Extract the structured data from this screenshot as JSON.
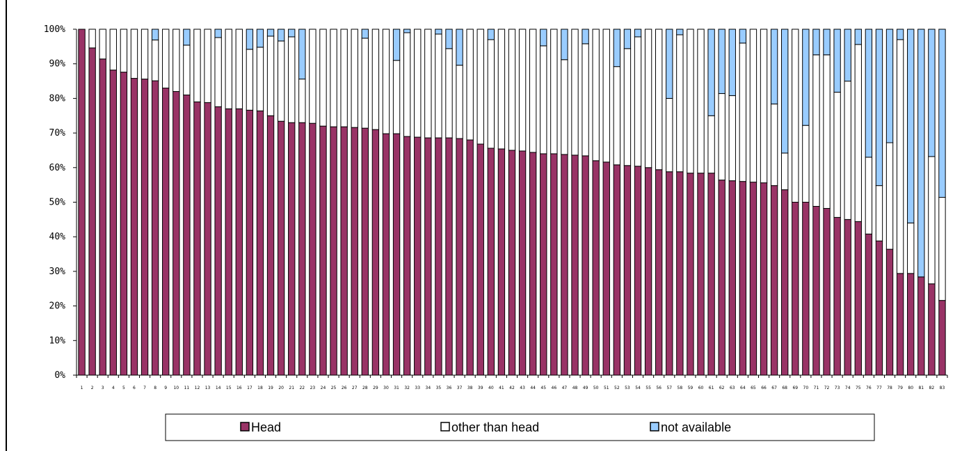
{
  "chart_data": {
    "type": "bar",
    "stacked": true,
    "normalized_percent": true,
    "categories": [
      "1",
      "2",
      "3",
      "4",
      "5",
      "6",
      "7",
      "8",
      "9",
      "10",
      "11",
      "12",
      "13",
      "14",
      "15",
      "16",
      "17",
      "18",
      "19",
      "20",
      "21",
      "22",
      "23",
      "24",
      "25",
      "26",
      "27",
      "28",
      "29",
      "30",
      "31",
      "32",
      "33",
      "34",
      "35",
      "36",
      "37",
      "38",
      "39",
      "40",
      "41",
      "42",
      "43",
      "44",
      "45",
      "46",
      "47",
      "48",
      "49",
      "50",
      "51",
      "52",
      "53",
      "54",
      "55",
      "56",
      "57",
      "58",
      "59",
      "60",
      "61",
      "62",
      "63",
      "64",
      "65",
      "66",
      "67",
      "68",
      "69",
      "70",
      "71",
      "72",
      "73",
      "74",
      "75",
      "76",
      "77",
      "78",
      "79",
      "80",
      "81",
      "82",
      "83"
    ],
    "series": [
      {
        "name": "Head",
        "color": "#993366",
        "values": [
          100,
          94.6,
          91.4,
          88.2,
          87.6,
          85.8,
          85.6,
          85.1,
          83.0,
          82.0,
          81.0,
          79.0,
          78.8,
          77.6,
          77.0,
          77.0,
          76.6,
          76.4,
          75.0,
          73.4,
          73.0,
          73.0,
          72.8,
          72.0,
          71.8,
          71.8,
          71.6,
          71.4,
          71.0,
          69.8,
          69.8,
          69.0,
          68.8,
          68.6,
          68.6,
          68.6,
          68.4,
          68.0,
          66.8,
          65.6,
          65.4,
          65.0,
          64.8,
          64.4,
          64.0,
          64.0,
          63.8,
          63.6,
          63.4,
          62.0,
          61.6,
          60.8,
          60.6,
          60.4,
          60.0,
          59.4,
          58.8,
          58.8,
          58.4,
          58.4,
          58.4,
          56.4,
          56.2,
          56.0,
          55.8,
          55.6,
          54.8,
          53.6,
          50.0,
          50.0,
          48.8,
          48.2,
          45.6,
          45.0,
          44.4,
          40.8,
          38.8,
          36.4,
          29.4,
          29.4,
          28.4,
          26.4,
          21.6
        ]
      },
      {
        "name": "other than head",
        "color": "#FFFFFF",
        "values": [
          0,
          5.4,
          8.6,
          11.8,
          12.4,
          14.2,
          14.4,
          11.8,
          17.0,
          18.0,
          14.4,
          21.0,
          21.2,
          20.0,
          23.0,
          23.0,
          17.6,
          18.4,
          23.0,
          23.2,
          24.8,
          12.6,
          27.2,
          28.0,
          28.2,
          28.2,
          28.4,
          26.0,
          29.0,
          30.2,
          21.2,
          30.0,
          31.2,
          31.4,
          30.0,
          25.8,
          21.2,
          32.0,
          33.2,
          31.4,
          34.6,
          35.0,
          35.2,
          35.6,
          31.2,
          36.0,
          27.4,
          36.4,
          32.4,
          38.0,
          38.4,
          28.4,
          33.8,
          37.4,
          40.0,
          40.6,
          21.2,
          39.6,
          41.6,
          41.6,
          16.6,
          25.0,
          24.6,
          40.0,
          44.2,
          44.4,
          23.6,
          10.6,
          50.0,
          22.2,
          43.8,
          44.4,
          36.2,
          40.0,
          51.2,
          22.2,
          16.0,
          30.8,
          67.6,
          14.6,
          0,
          36.8,
          29.8
        ]
      },
      {
        "name": "not available",
        "color": "#99CCFF",
        "values": [
          0,
          0,
          0,
          0,
          0,
          0,
          0,
          3.1,
          0,
          0,
          4.6,
          0,
          0,
          2.4,
          0,
          0,
          5.8,
          5.2,
          2.0,
          3.4,
          2.2,
          14.4,
          0,
          0,
          0,
          0,
          0,
          2.6,
          0,
          0,
          9.0,
          1.0,
          0,
          0,
          1.4,
          5.6,
          10.4,
          0,
          0,
          3.0,
          0,
          0,
          0,
          0,
          4.8,
          0,
          8.8,
          0,
          4.2,
          0,
          0,
          10.8,
          5.6,
          2.2,
          0,
          0,
          20.0,
          1.6,
          0,
          0,
          25.0,
          18.6,
          19.2,
          4.0,
          0,
          0,
          21.6,
          35.8,
          0,
          27.8,
          7.4,
          7.4,
          18.2,
          15.0,
          4.4,
          37.0,
          45.2,
          32.8,
          3.0,
          56.0,
          71.6,
          36.8,
          48.6
        ]
      }
    ],
    "y_tick_labels": [
      "0%",
      "10%",
      "20%",
      "30%",
      "40%",
      "50%",
      "60%",
      "70%",
      "80%",
      "90%",
      "100%"
    ],
    "ylim": [
      0,
      100
    ],
    "grid": false,
    "legend_position": "bottom"
  }
}
